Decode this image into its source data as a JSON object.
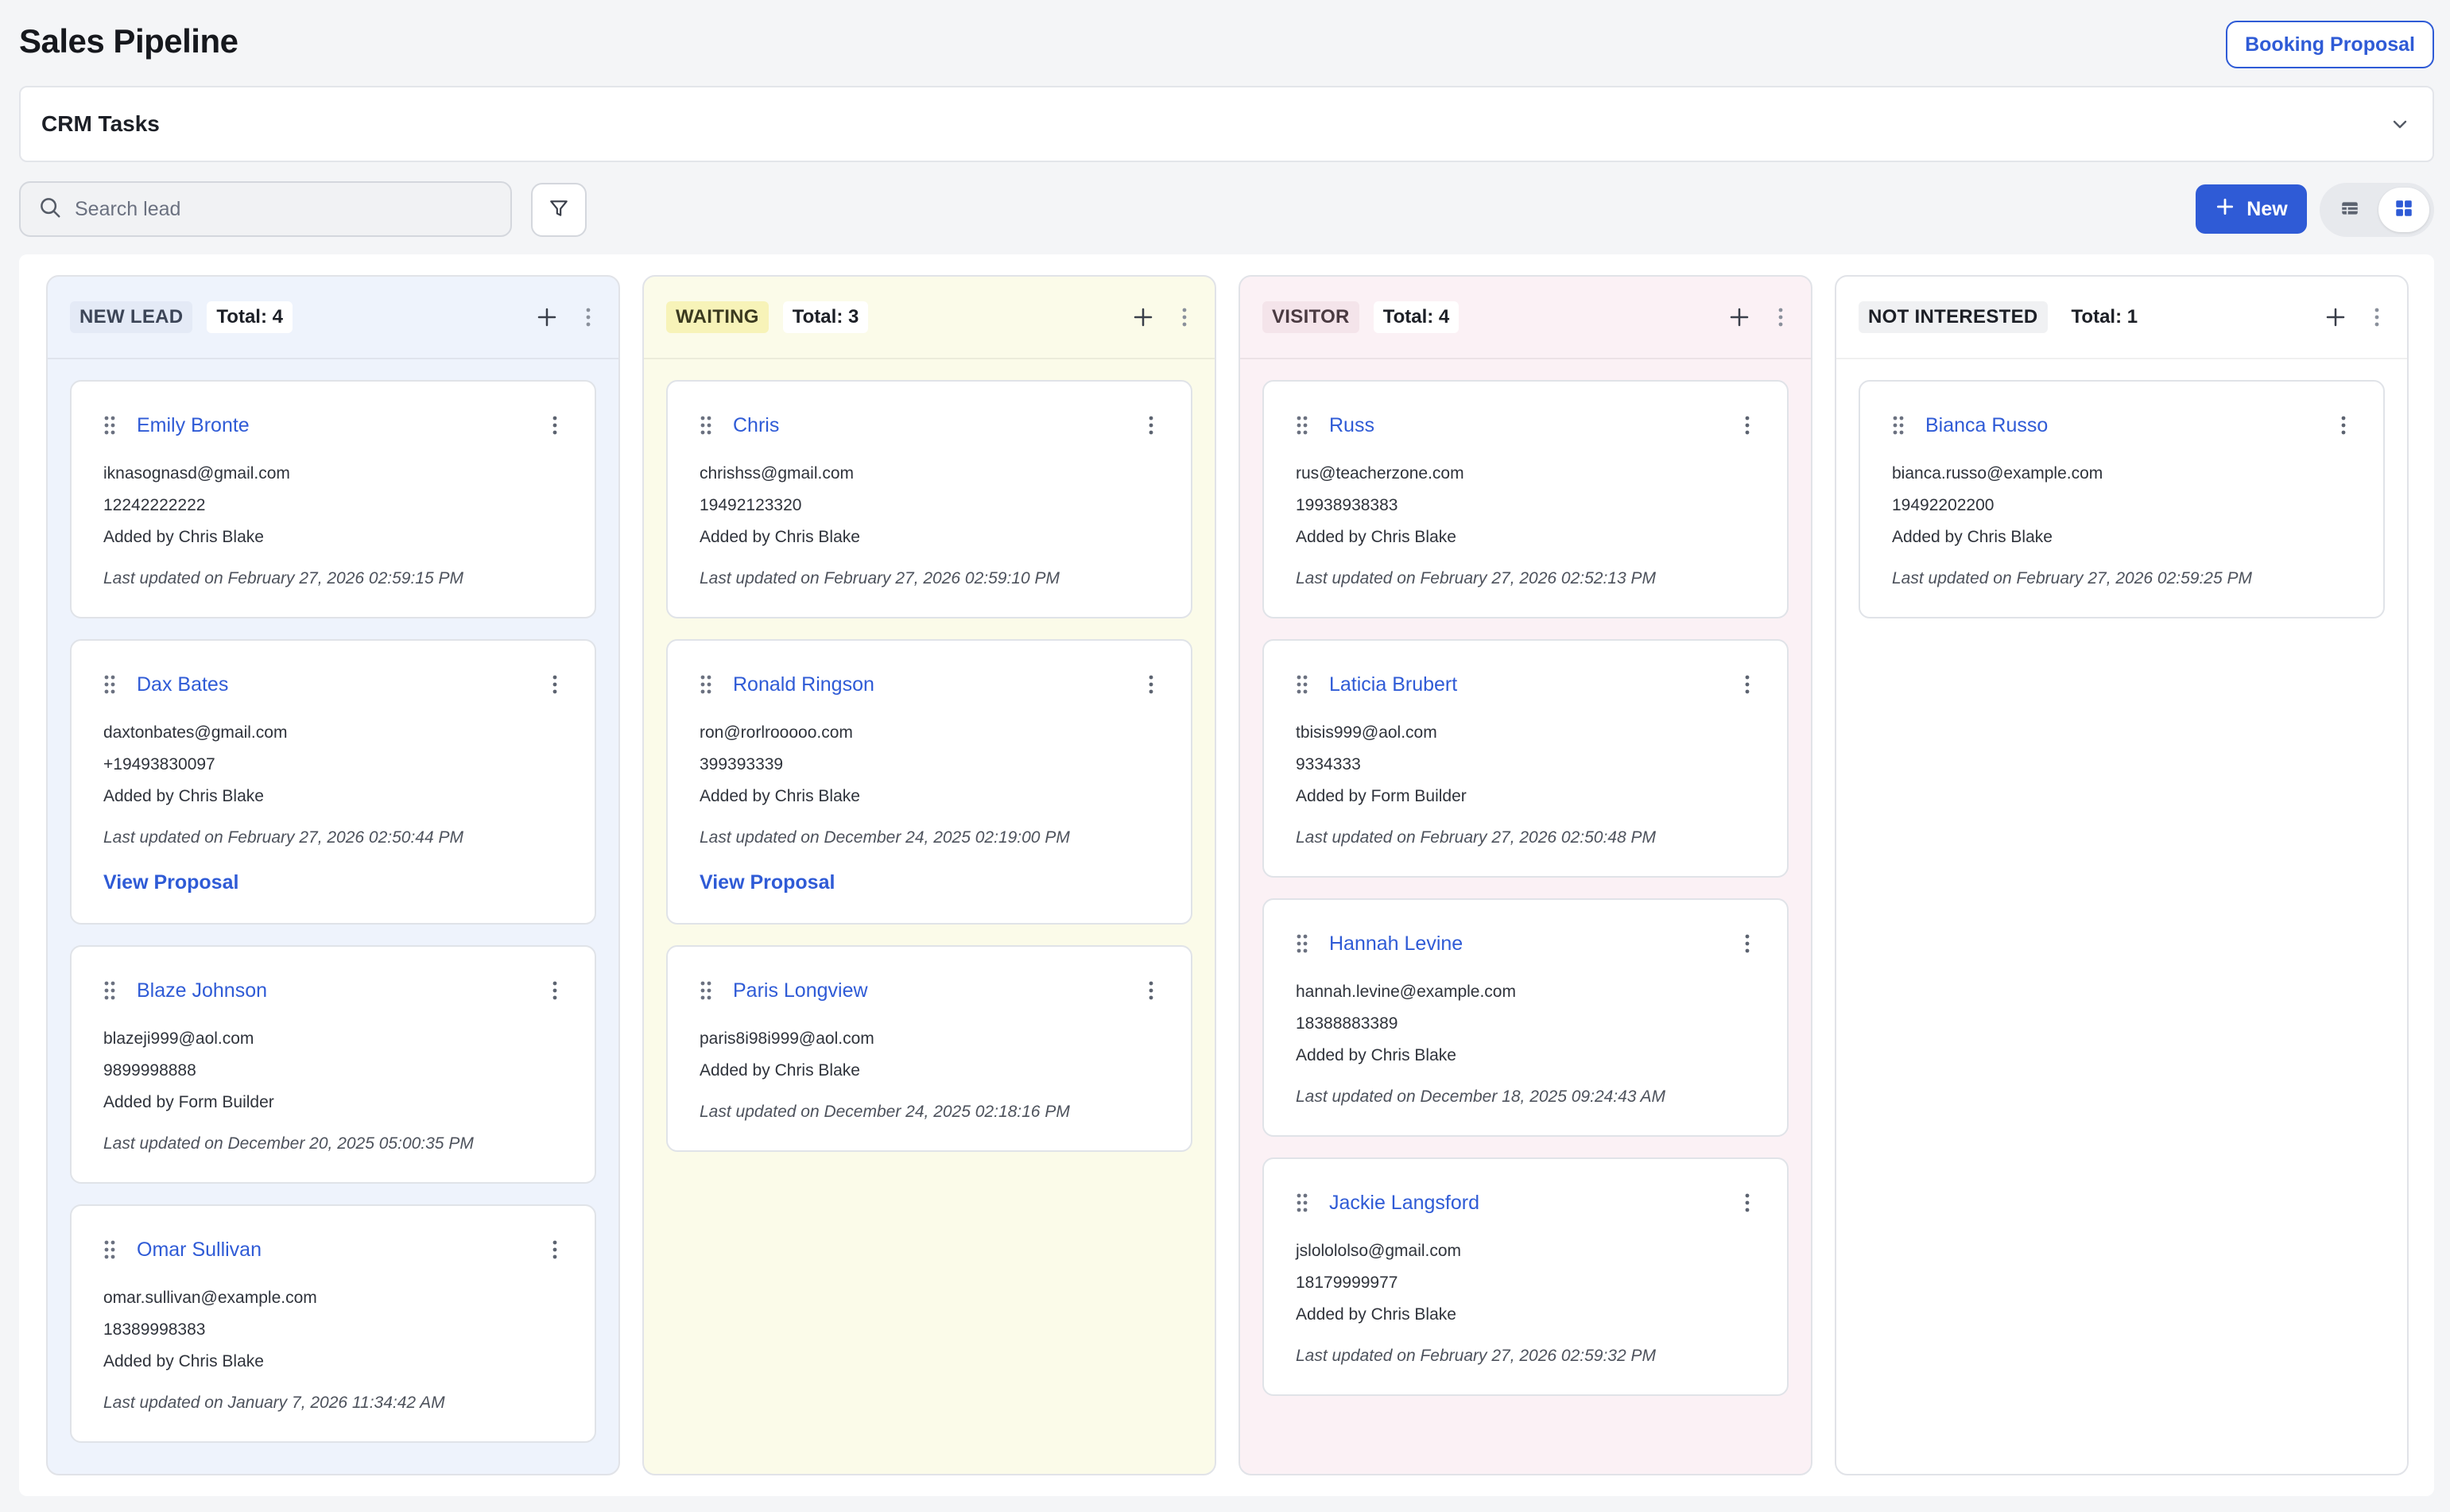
{
  "header": {
    "title": "Sales Pipeline",
    "booking_button": "Booking Proposal"
  },
  "crm": {
    "title": "CRM Tasks"
  },
  "toolbar": {
    "search_placeholder": "Search lead",
    "new_label": "New"
  },
  "icons": {
    "search": "search-icon",
    "filter": "filter-icon",
    "plus": "plus-icon",
    "table_view": "table-view-icon",
    "board_view": "board-view-icon",
    "chevron": "chevron-down-icon",
    "drag": "drag-handle-icon",
    "more": "more-vertical-icon"
  },
  "colors": {
    "accent": "#2f5bd6",
    "new_lead_bg": "#eef3fc",
    "waiting_bg": "#fbfbe9",
    "visitor_bg": "#fbf1f5"
  },
  "columns": [
    {
      "stage": "NEW LEAD",
      "total": "Total: 4",
      "cards": [
        {
          "name": "Emily Bronte",
          "email": "iknasognasd@gmail.com",
          "phone": "12242222222",
          "added_by": "Added by Chris Blake",
          "updated": "Last updated on February 27, 2026 02:59:15 PM"
        },
        {
          "name": "Dax Bates",
          "email": "daxtonbates@gmail.com",
          "phone": "+19493830097",
          "added_by": "Added by Chris Blake",
          "updated": "Last updated on February 27, 2026 02:50:44 PM",
          "link": "View Proposal"
        },
        {
          "name": "Blaze Johnson",
          "email": "blazeji999@aol.com",
          "phone": "9899998888",
          "added_by": "Added by Form Builder",
          "updated": "Last updated on December 20, 2025 05:00:35 PM"
        },
        {
          "name": "Omar Sullivan",
          "email": "omar.sullivan@example.com",
          "phone": "18389998383",
          "added_by": "Added by Chris Blake",
          "updated": "Last updated on January 7, 2026 11:34:42 AM"
        }
      ]
    },
    {
      "stage": "WAITING",
      "total": "Total: 3",
      "cards": [
        {
          "name": "Chris",
          "email": "chrishss@gmail.com",
          "phone": "19492123320",
          "added_by": "Added by Chris Blake",
          "updated": "Last updated on February 27, 2026 02:59:10 PM"
        },
        {
          "name": "Ronald Ringson",
          "email": "ron@rorlrooooo.com",
          "phone": "399393339",
          "added_by": "Added by Chris Blake",
          "updated": "Last updated on December 24, 2025 02:19:00 PM",
          "link": "View Proposal"
        },
        {
          "name": "Paris Longview",
          "email": "paris8i98i999@aol.com",
          "added_by": "Added by Chris Blake",
          "updated": "Last updated on December 24, 2025 02:18:16 PM"
        }
      ]
    },
    {
      "stage": "VISITOR",
      "total": "Total: 4",
      "cards": [
        {
          "name": "Russ",
          "email": "rus@teacherzone.com",
          "phone": "19938938383",
          "added_by": "Added by Chris Blake",
          "updated": "Last updated on February 27, 2026 02:52:13 PM"
        },
        {
          "name": "Laticia Brubert",
          "email": "tbisis999@aol.com",
          "phone": "9334333",
          "added_by": "Added by Form Builder",
          "updated": "Last updated on February 27, 2026 02:50:48 PM"
        },
        {
          "name": "Hannah Levine",
          "email": "hannah.levine@example.com",
          "phone": "18388883389",
          "added_by": "Added by Chris Blake",
          "updated": "Last updated on December 18, 2025 09:24:43 AM"
        },
        {
          "name": "Jackie Langsford",
          "email": "jslolololso@gmail.com",
          "phone": "18179999977",
          "added_by": "Added by Chris Blake",
          "updated": "Last updated on February 27, 2026 02:59:32 PM"
        }
      ]
    },
    {
      "stage": "NOT INTERESTED",
      "total": "Total: 1",
      "cards": [
        {
          "name": "Bianca Russo",
          "email": "bianca.russo@example.com",
          "phone": "19492202200",
          "added_by": "Added by Chris Blake",
          "updated": "Last updated on February 27, 2026 02:59:25 PM"
        }
      ]
    }
  ]
}
